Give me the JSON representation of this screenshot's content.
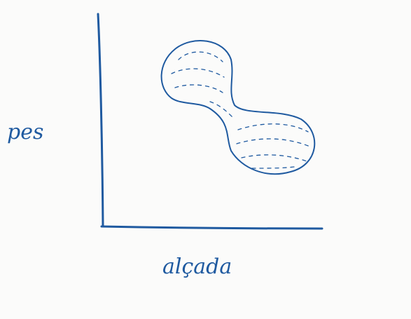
{
  "axes": {
    "y_label": "pes",
    "x_label": "alçada"
  }
}
